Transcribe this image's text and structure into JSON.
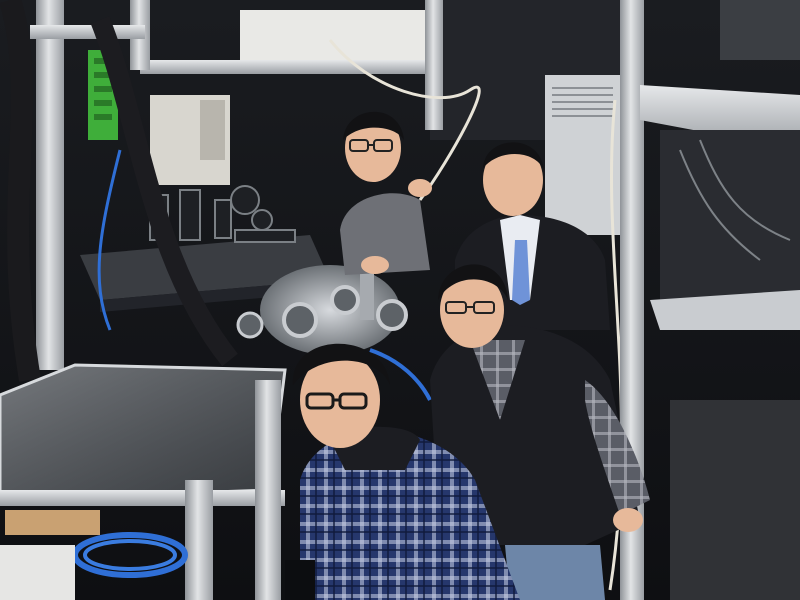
{
  "photo": {
    "subject": "lab-photo",
    "people_count": 4,
    "colors": {
      "background": "#17181b",
      "aluminum_frame": "#c9ccd0",
      "optical_table": "#3a3d42",
      "vacuum_chamber": "#9ea3a8",
      "blue_cable": "#2f6fd6",
      "white_cable": "#e8e4d8",
      "green_rack": "#3fae3a",
      "plaid_blue": "#2a3f7a",
      "jacket_black": "#1c1d22",
      "sweater_gray": "#6e7076",
      "tie_blue": "#6f93d8",
      "skin": "#e7b99a",
      "hair": "#121214"
    }
  }
}
